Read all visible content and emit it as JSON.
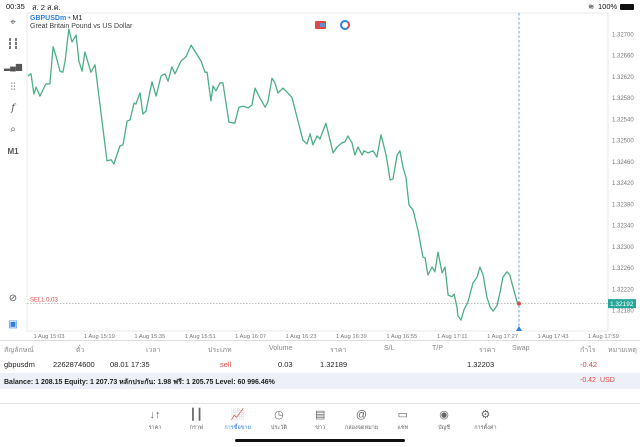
{
  "status_bar": {
    "time": "00:35",
    "date": "ส. 2 ส.ค.",
    "battery": "100%"
  },
  "chart_header": {
    "symbol": "GBPUSDm",
    "timeframe": "M1",
    "description": "Great Britain Pound vs US Dollar"
  },
  "toolbar": {
    "timeframe_label": "M1",
    "items": [
      "crosshair-icon",
      "chart-type-icon",
      "volume-icon",
      "indicators-icon",
      "function-icon",
      "objects-icon",
      "M1",
      "zoom-chart-icon",
      "one-click-trading-icon"
    ]
  },
  "colors": {
    "line": "#4caf85",
    "sell": "#e04848",
    "accent": "#2f7fe0",
    "current_price_bg": "#26a69a"
  },
  "chart_data": {
    "type": "line",
    "start_time": "1 Aug 15:03",
    "price_ticks": [
      "1.32700",
      "1.32660",
      "1.32620",
      "1.32580",
      "1.32540",
      "1.32500",
      "1.32460",
      "1.32420",
      "1.32380",
      "1.32340",
      "1.32300",
      "1.32260",
      "1.32220",
      "1.32180"
    ],
    "price_range": [
      1.3218,
      1.327
    ],
    "time_ticks": [
      "1 Aug 15:03",
      "1 Aug 15:19",
      "1 Aug 15:35",
      "1 Aug 15:51",
      "1 Aug 16:07",
      "1 Aug 16:23",
      "1 Aug 16:39",
      "1 Aug 16:55",
      "1 Aug 17:11",
      "1 Aug 17:27",
      "1 Aug 17:43",
      "1 Aug 17:59"
    ],
    "tick_interval_minutes": 16,
    "current_price": "1.32192",
    "current_price_value": 1.32192,
    "position_label": "SELL 0.03",
    "position_price": 1.32192,
    "points_minutes_price": [
      [
        -6.7,
        1.32621
      ],
      [
        -5.7,
        1.32625
      ],
      [
        -4.8,
        1.32587
      ],
      [
        -4.1,
        1.326
      ],
      [
        -2.9,
        1.32583
      ],
      [
        -1,
        1.32606
      ],
      [
        0.3,
        1.32606
      ],
      [
        1.3,
        1.32676
      ],
      [
        2.2,
        1.32659
      ],
      [
        3.5,
        1.3263
      ],
      [
        4.4,
        1.32628
      ],
      [
        5.1,
        1.32649
      ],
      [
        6.3,
        1.32709
      ],
      [
        7.3,
        1.32685
      ],
      [
        8.6,
        1.32698
      ],
      [
        9.5,
        1.32649
      ],
      [
        10.5,
        1.3263
      ],
      [
        11.4,
        1.32666
      ],
      [
        13.3,
        1.32628
      ],
      [
        14.6,
        1.32642
      ],
      [
        18.4,
        1.32461
      ],
      [
        19.7,
        1.32463
      ],
      [
        20.6,
        1.32455
      ],
      [
        22.5,
        1.32489
      ],
      [
        23.5,
        1.32491
      ],
      [
        24.8,
        1.32536
      ],
      [
        25.7,
        1.32538
      ],
      [
        27,
        1.3257
      ],
      [
        27.6,
        1.32568
      ],
      [
        28.9,
        1.32589
      ],
      [
        29.8,
        1.32549
      ],
      [
        30.8,
        1.32555
      ],
      [
        32.7,
        1.3261
      ],
      [
        34,
        1.32583
      ],
      [
        35.6,
        1.32621
      ],
      [
        36.8,
        1.32625
      ],
      [
        37.8,
        1.32611
      ],
      [
        39,
        1.32638
      ],
      [
        40,
        1.32625
      ],
      [
        41.9,
        1.32649
      ],
      [
        43.5,
        1.32657
      ],
      [
        45.1,
        1.32679
      ],
      [
        46.3,
        1.32668
      ],
      [
        48.3,
        1.32649
      ],
      [
        49.5,
        1.32628
      ],
      [
        50.2,
        1.32628
      ],
      [
        51.4,
        1.32574
      ],
      [
        52.1,
        1.32602
      ],
      [
        53,
        1.32593
      ],
      [
        54.3,
        1.32608
      ],
      [
        55.2,
        1.32608
      ],
      [
        57.1,
        1.32534
      ],
      [
        59,
        1.32532
      ],
      [
        60.3,
        1.32562
      ],
      [
        61.6,
        1.32564
      ],
      [
        63.2,
        1.32561
      ],
      [
        64.4,
        1.32566
      ],
      [
        65.4,
        1.32598
      ],
      [
        67,
        1.32579
      ],
      [
        68.6,
        1.32562
      ],
      [
        69.5,
        1.32572
      ],
      [
        70.8,
        1.32617
      ],
      [
        71.7,
        1.32608
      ],
      [
        72.7,
        1.32589
      ],
      [
        74.3,
        1.32598
      ],
      [
        77.1,
        1.32581
      ],
      [
        80.6,
        1.325
      ],
      [
        81.9,
        1.32493
      ],
      [
        82.9,
        1.32512
      ],
      [
        83.8,
        1.32491
      ],
      [
        85.1,
        1.32508
      ],
      [
        86,
        1.32502
      ],
      [
        87.9,
        1.32532
      ],
      [
        90.2,
        1.32476
      ],
      [
        91.4,
        1.32487
      ],
      [
        93,
        1.32495
      ],
      [
        94,
        1.32497
      ],
      [
        94.9,
        1.32508
      ],
      [
        96.2,
        1.32495
      ],
      [
        97.1,
        1.32472
      ],
      [
        98.1,
        1.32487
      ],
      [
        99.4,
        1.32472
      ],
      [
        100,
        1.3248
      ],
      [
        101.3,
        1.32476
      ],
      [
        102.9,
        1.3248
      ],
      [
        104.1,
        1.32468
      ],
      [
        105.4,
        1.3251
      ],
      [
        107,
        1.32472
      ],
      [
        108.3,
        1.32425
      ],
      [
        109.2,
        1.32427
      ],
      [
        110.5,
        1.32472
      ],
      [
        111.4,
        1.3248
      ],
      [
        112.4,
        1.32448
      ],
      [
        113.3,
        1.32431
      ],
      [
        114.3,
        1.32378
      ],
      [
        115.6,
        1.32368
      ],
      [
        117.1,
        1.32331
      ],
      [
        118.7,
        1.3228
      ],
      [
        119.4,
        1.32278
      ],
      [
        120.3,
        1.32246
      ],
      [
        121.6,
        1.32261
      ],
      [
        122.5,
        1.32252
      ],
      [
        123.5,
        1.32289
      ],
      [
        124.8,
        1.3225
      ],
      [
        125.7,
        1.32261
      ],
      [
        126.7,
        1.32208
      ],
      [
        127.9,
        1.32205
      ],
      [
        128.6,
        1.3221
      ],
      [
        129.5,
        1.32186
      ],
      [
        129.8,
        1.32169
      ],
      [
        130.8,
        1.32161
      ],
      [
        131.7,
        1.3218
      ],
      [
        133,
        1.32195
      ],
      [
        134.6,
        1.32231
      ],
      [
        135.9,
        1.32242
      ],
      [
        136.8,
        1.32261
      ],
      [
        137.8,
        1.32246
      ],
      [
        139,
        1.32205
      ],
      [
        140,
        1.32186
      ],
      [
        141,
        1.32178
      ],
      [
        142.2,
        1.32188
      ],
      [
        143.2,
        1.32214
      ],
      [
        144.1,
        1.32242
      ],
      [
        145.4,
        1.32252
      ],
      [
        146.3,
        1.32246
      ],
      [
        147.3,
        1.32223
      ],
      [
        148.6,
        1.32195
      ],
      [
        149.2,
        1.32192
      ]
    ]
  },
  "trade_table": {
    "headers": [
      "สัญลักษณ์",
      "ตั๋ว",
      "เวลา",
      "ประเภท",
      "Volume",
      "ราคา",
      "S/L",
      "T/P",
      "ราคา",
      "Swap",
      "กำไร",
      "หมายเหตุ"
    ],
    "rows": [
      {
        "symbol": "gbpusdm",
        "ticket": "2262874600",
        "time": "08.01 17:35",
        "type": "sell",
        "volume": "0.03",
        "open_price": "1.32189",
        "sl": "",
        "tp": "",
        "price": "1.32203",
        "swap": "",
        "profit": "-0.42",
        "comment": ""
      }
    ],
    "summary": {
      "text": "Balance: 1 208.15 Equity: 1 207.73 หลักประกัน: 1.98 ฟรี: 1 205.75 Level: 60 996.46%",
      "profit": "-0.42",
      "currency": "USD"
    }
  },
  "tabs": [
    {
      "label": "ราคา",
      "icon": "↓↑"
    },
    {
      "label": "กราฟ",
      "icon": "┃┃"
    },
    {
      "label": "การซื้อขาย",
      "icon": "📈",
      "active": true
    },
    {
      "label": "ประวัติ",
      "icon": "◷"
    },
    {
      "label": "ข่าว",
      "icon": "▤"
    },
    {
      "label": "กล่องจดหมาย",
      "icon": "@"
    },
    {
      "label": "แชท",
      "icon": "▭"
    },
    {
      "label": "บัญชี",
      "icon": "◉"
    },
    {
      "label": "การตั้งค่า",
      "icon": "⚙"
    }
  ]
}
